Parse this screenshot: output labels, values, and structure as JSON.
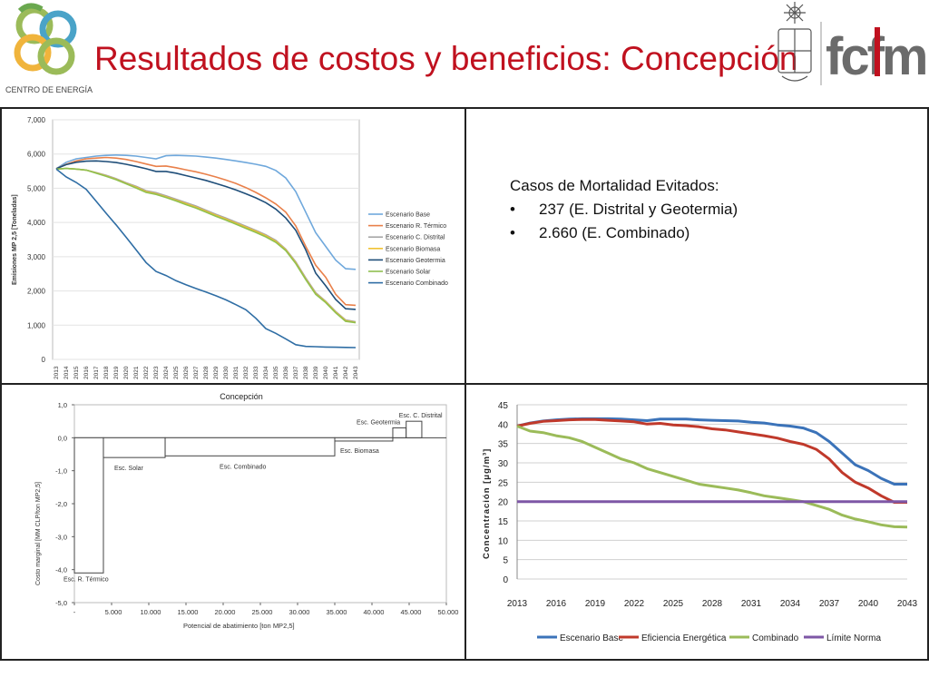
{
  "slide": {
    "title": "Resultados de costos y beneficios: Concepción",
    "logo_left_text": "CENTRO DE ENERGÍA",
    "logo_right_text": "fcfm"
  },
  "mortality": {
    "heading": "Casos de Mortalidad Evitados:",
    "items": [
      "237 (E. Distrital y Geotermia)",
      "2.660 (E. Combinado)"
    ]
  },
  "colors": {
    "title": "#c0111f",
    "panel_border": "#222222"
  },
  "chart_data": [
    {
      "type": "line",
      "title": "",
      "xlabel": "",
      "ylabel": "Emisiones MP 2,5 [Toneladas]",
      "ylim": [
        0,
        7000
      ],
      "yticks": [
        "0",
        "1,000",
        "2,000",
        "3,000",
        "4,000",
        "5,000",
        "6,000",
        "7,000"
      ],
      "x": [
        "2013",
        "2014",
        "2015",
        "2016",
        "2017",
        "2018",
        "2019",
        "2020",
        "2021",
        "2022",
        "2023",
        "2024",
        "2025",
        "2026",
        "2027",
        "2028",
        "2029",
        "2030",
        "2031",
        "2032",
        "2033",
        "2034",
        "2035",
        "2036",
        "2037",
        "2038",
        "2039",
        "2040",
        "2041",
        "2042",
        "2043"
      ],
      "legend_position": "right",
      "series": [
        {
          "name": "Escenario Base",
          "color": "#6fa8dc",
          "values": [
            5570,
            5760,
            5860,
            5900,
            5940,
            5960,
            5970,
            5960,
            5940,
            5900,
            5860,
            5950,
            5960,
            5950,
            5940,
            5910,
            5880,
            5840,
            5800,
            5750,
            5700,
            5640,
            5520,
            5300,
            4900,
            4300,
            3700,
            3300,
            2900,
            2650,
            2630
          ]
        },
        {
          "name": "Escenario R. Térmico",
          "color": "#e9804a",
          "values": [
            5570,
            5700,
            5800,
            5860,
            5880,
            5900,
            5880,
            5840,
            5780,
            5710,
            5640,
            5650,
            5600,
            5540,
            5480,
            5410,
            5330,
            5240,
            5140,
            5020,
            4880,
            4720,
            4540,
            4300,
            3900,
            3300,
            2750,
            2400,
            1900,
            1600,
            1580
          ]
        },
        {
          "name": "Escenario C. Distrital",
          "color": "#a6a6a6",
          "values": [
            5560,
            5580,
            5560,
            5530,
            5460,
            5380,
            5280,
            5160,
            5060,
            4930,
            4870,
            4780,
            4680,
            4580,
            4480,
            4360,
            4240,
            4130,
            4010,
            3890,
            3770,
            3640,
            3480,
            3220,
            2850,
            2380,
            1950,
            1700,
            1400,
            1150,
            1100
          ]
        },
        {
          "name": "Escenario Biomasa",
          "color": "#f1c232",
          "values": [
            5560,
            5580,
            5560,
            5530,
            5450,
            5360,
            5260,
            5140,
            5030,
            4900,
            4840,
            4750,
            4650,
            4550,
            4450,
            4330,
            4210,
            4100,
            3980,
            3860,
            3740,
            3610,
            3450,
            3200,
            2820,
            2350,
            1920,
            1680,
            1380,
            1130,
            1080
          ]
        },
        {
          "name": "Escenario Geotermia",
          "color": "#1f4e79",
          "values": [
            5570,
            5690,
            5760,
            5790,
            5800,
            5780,
            5750,
            5700,
            5640,
            5570,
            5490,
            5490,
            5440,
            5370,
            5300,
            5230,
            5140,
            5050,
            4950,
            4840,
            4720,
            4580,
            4390,
            4130,
            3770,
            3200,
            2520,
            2150,
            1750,
            1480,
            1460
          ]
        },
        {
          "name": "Escenario Solar",
          "color": "#8fc050",
          "values": [
            5560,
            5580,
            5560,
            5530,
            5440,
            5350,
            5250,
            5130,
            5010,
            4880,
            4820,
            4730,
            4630,
            4520,
            4420,
            4300,
            4180,
            4070,
            3950,
            3830,
            3710,
            3580,
            3420,
            3180,
            2800,
            2330,
            1900,
            1660,
            1360,
            1110,
            1070
          ]
        },
        {
          "name": "Escenario Combinado",
          "color": "#2e6da4",
          "values": [
            5560,
            5330,
            5170,
            4970,
            4620,
            4270,
            3930,
            3570,
            3200,
            2830,
            2570,
            2450,
            2300,
            2180,
            2070,
            1970,
            1860,
            1740,
            1600,
            1450,
            1200,
            900,
            760,
            600,
            430,
            380,
            370,
            360,
            355,
            350,
            345
          ]
        }
      ]
    },
    {
      "type": "bar",
      "title": "Concepción",
      "xlabel": "Potencial de abatimiento [ton MP2,5]",
      "ylabel": "Costo marginal [MM CLP/ton MP2,5]",
      "xlim": [
        0,
        50000
      ],
      "ylim": [
        -5,
        1
      ],
      "xticks": [
        "-",
        "5.000",
        "10.000",
        "15.000",
        "20.000",
        "25.000",
        "30.000",
        "35.000",
        "40.000",
        "45.000",
        "50.000"
      ],
      "yticks": [
        "1,0",
        "0,0",
        "-1,0",
        "-2,0",
        "-3,0",
        "-4,0",
        "-5,0"
      ],
      "bars": [
        {
          "label": "Esc. R. Térmico",
          "start": 0,
          "width": 3900,
          "value": -4.1
        },
        {
          "label": "Esc. Solar",
          "start": 3900,
          "width": 8300,
          "value": -0.6
        },
        {
          "label": "Esc. Combinado",
          "start": 12200,
          "width": 22800,
          "value": -0.55
        },
        {
          "label": "Esc. Biomasa",
          "start": 35000,
          "width": 7800,
          "value": -0.1
        },
        {
          "label": "Esc. Geotermia",
          "start": 42800,
          "width": 1800,
          "value": 0.3
        },
        {
          "label": "Esc. C. Distrital",
          "start": 44600,
          "width": 2100,
          "value": 0.5
        }
      ]
    },
    {
      "type": "line",
      "title": "",
      "xlabel": "",
      "ylabel": "Concentración [μg/m³]",
      "ylim": [
        0,
        45
      ],
      "yticks": [
        "0",
        "5",
        "10",
        "15",
        "20",
        "25",
        "30",
        "35",
        "40",
        "45"
      ],
      "xticks": [
        "2013",
        "2016",
        "2019",
        "2022",
        "2025",
        "2028",
        "2031",
        "2034",
        "2037",
        "2040",
        "2043"
      ],
      "x": [
        2013,
        2014,
        2015,
        2016,
        2017,
        2018,
        2019,
        2020,
        2021,
        2022,
        2023,
        2024,
        2025,
        2026,
        2027,
        2028,
        2029,
        2030,
        2031,
        2032,
        2033,
        2034,
        2035,
        2036,
        2037,
        2038,
        2039,
        2040,
        2041,
        2042,
        2043
      ],
      "legend_position": "bottom",
      "series": [
        {
          "name": "Escenario Base",
          "color": "#3b73b9",
          "values": [
            39.5,
            40.3,
            40.8,
            41.1,
            41.3,
            41.4,
            41.4,
            41.4,
            41.3,
            41.1,
            40.9,
            41.3,
            41.3,
            41.3,
            41.1,
            41.0,
            40.9,
            40.8,
            40.5,
            40.3,
            39.8,
            39.5,
            39.0,
            37.8,
            35.5,
            32.5,
            29.5,
            28.0,
            26.0,
            24.5,
            24.5
          ]
        },
        {
          "name": "Eficiencia Energética",
          "color": "#c0392b",
          "values": [
            39.5,
            40.2,
            40.7,
            40.9,
            41.1,
            41.2,
            41.2,
            41.0,
            40.8,
            40.6,
            40.0,
            40.2,
            39.8,
            39.6,
            39.3,
            38.8,
            38.5,
            38.0,
            37.5,
            37.0,
            36.4,
            35.5,
            34.8,
            33.5,
            31.0,
            27.5,
            25.0,
            23.5,
            21.5,
            19.8,
            19.8
          ]
        },
        {
          "name": "Combinado",
          "color": "#9bbb59",
          "values": [
            39.5,
            38.2,
            37.8,
            37.0,
            36.5,
            35.5,
            34.0,
            32.5,
            31.0,
            30.0,
            28.5,
            27.5,
            26.5,
            25.5,
            24.5,
            24.0,
            23.5,
            23.0,
            22.3,
            21.5,
            21.0,
            20.5,
            20.0,
            19.0,
            18.0,
            16.5,
            15.5,
            14.8,
            14.0,
            13.5,
            13.4
          ]
        },
        {
          "name": "Límite Norma",
          "color": "#7e57a6",
          "values": [
            20,
            20,
            20,
            20,
            20,
            20,
            20,
            20,
            20,
            20,
            20,
            20,
            20,
            20,
            20,
            20,
            20,
            20,
            20,
            20,
            20,
            20,
            20,
            20,
            20,
            20,
            20,
            20,
            20,
            20,
            20
          ]
        }
      ]
    }
  ]
}
